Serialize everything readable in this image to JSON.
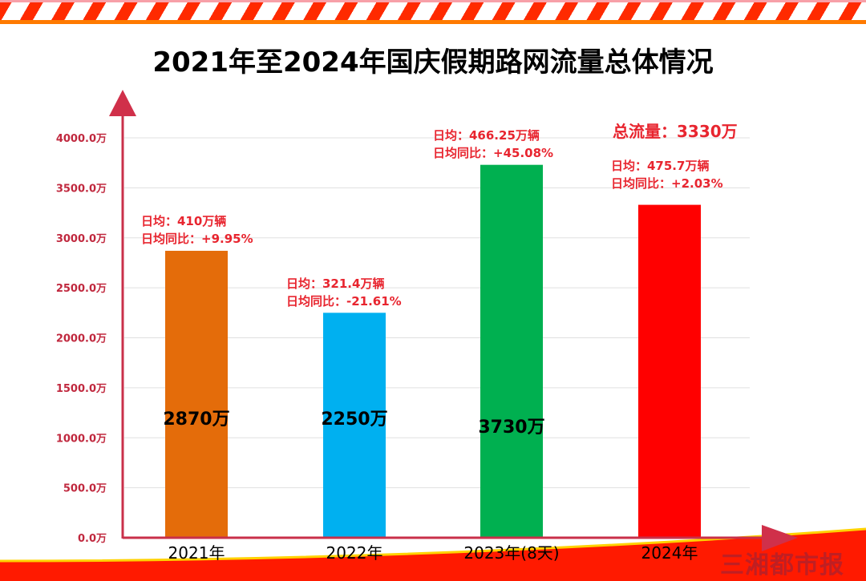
{
  "title": "2021年至2024年国庆假期路网流量总体情况",
  "watermark": "三湘都市报",
  "total_label": "总流量：3330万",
  "chart_data": {
    "type": "bar",
    "title": "2021年至2024年国庆假期路网流量总体情况",
    "categories": [
      "2021年",
      "2022年",
      "2023年(8天)",
      "2024年"
    ],
    "values": [
      2870,
      2250,
      3730,
      3330
    ],
    "value_labels": [
      "2870万",
      "2250万",
      "3730万",
      ""
    ],
    "colors": [
      "#e46c0a",
      "#00b0f0",
      "#00b050",
      "#ff0000"
    ],
    "ylim": [
      0,
      4000
    ],
    "yticks": [
      "0.0万",
      "500.0万",
      "1000.0万",
      "1500.0万",
      "2000.0万",
      "2500.0万",
      "3000.0万",
      "3500.0万",
      "4000.0万"
    ],
    "grid": true,
    "annotations": [
      {
        "daily": "日均：410万辆",
        "yoy": "日均同比：+9.95%"
      },
      {
        "daily": "日均：321.4万辆",
        "yoy": "日均同比：-21.61%"
      },
      {
        "daily": "日均：466.25万辆",
        "yoy": "日均同比：+45.08%"
      },
      {
        "daily": "日均：475.7万辆",
        "yoy": "日均同比：+2.03%"
      }
    ]
  }
}
